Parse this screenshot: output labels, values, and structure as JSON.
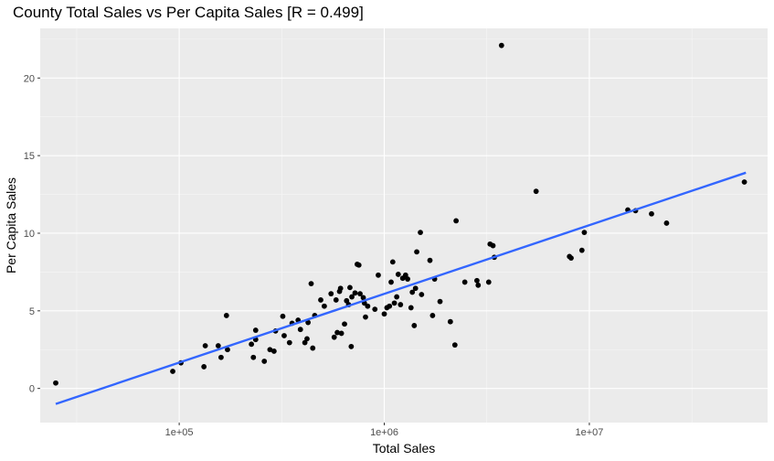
{
  "chart_data": {
    "type": "scatter",
    "title": "County Total Sales vs Per Capita Sales [R = 0.499]",
    "xlabel": "Total Sales",
    "ylabel": "Per Capita Sales",
    "x_scale": "log10",
    "xlim": [
      21000,
      74000000
    ],
    "ylim": [
      -2.2,
      23.2
    ],
    "x_ticks": [
      100000,
      1000000,
      10000000
    ],
    "x_tick_labels": [
      "1e+05",
      "1e+06",
      "1e+07"
    ],
    "y_ticks": [
      0,
      5,
      10,
      15,
      20
    ],
    "y_tick_labels": [
      "0",
      "5",
      "10",
      "15",
      "20"
    ],
    "grid": true,
    "fit_line": {
      "x": [
        25000,
        58000000
      ],
      "y": [
        -1.0,
        13.9
      ],
      "color": "#3366FF"
    },
    "point_color": "#000000",
    "points": [
      [
        25000,
        0.35
      ],
      [
        93000,
        1.1
      ],
      [
        102000,
        1.65
      ],
      [
        132000,
        1.4
      ],
      [
        134000,
        2.75
      ],
      [
        155000,
        2.75
      ],
      [
        160000,
        2.0
      ],
      [
        170000,
        4.7
      ],
      [
        172000,
        2.5
      ],
      [
        225000,
        2.85
      ],
      [
        230000,
        2.0
      ],
      [
        236000,
        3.15
      ],
      [
        236000,
        3.75
      ],
      [
        260000,
        1.75
      ],
      [
        277000,
        2.5
      ],
      [
        290000,
        2.4
      ],
      [
        295000,
        3.7
      ],
      [
        320000,
        4.65
      ],
      [
        325000,
        3.4
      ],
      [
        345000,
        2.95
      ],
      [
        355000,
        4.2
      ],
      [
        380000,
        4.4
      ],
      [
        390000,
        3.8
      ],
      [
        410000,
        2.95
      ],
      [
        420000,
        3.2
      ],
      [
        425000,
        4.25
      ],
      [
        440000,
        6.75
      ],
      [
        448000,
        2.6
      ],
      [
        458000,
        4.7
      ],
      [
        490000,
        5.7
      ],
      [
        510000,
        5.3
      ],
      [
        550000,
        6.1
      ],
      [
        570000,
        3.3
      ],
      [
        582000,
        5.7
      ],
      [
        590000,
        3.6
      ],
      [
        605000,
        6.25
      ],
      [
        612000,
        6.45
      ],
      [
        618000,
        3.55
      ],
      [
        640000,
        4.15
      ],
      [
        655000,
        5.65
      ],
      [
        670000,
        5.4
      ],
      [
        680000,
        6.5
      ],
      [
        690000,
        2.7
      ],
      [
        695000,
        5.9
      ],
      [
        720000,
        6.15
      ],
      [
        738000,
        8.0
      ],
      [
        752000,
        7.95
      ],
      [
        762000,
        6.1
      ],
      [
        790000,
        5.85
      ],
      [
        800000,
        5.5
      ],
      [
        810000,
        4.6
      ],
      [
        830000,
        5.3
      ],
      [
        900000,
        5.1
      ],
      [
        935000,
        7.3
      ],
      [
        1000000,
        4.8
      ],
      [
        1030000,
        5.2
      ],
      [
        1060000,
        5.3
      ],
      [
        1080000,
        6.85
      ],
      [
        1100000,
        8.15
      ],
      [
        1120000,
        5.5
      ],
      [
        1150000,
        5.9
      ],
      [
        1170000,
        7.35
      ],
      [
        1200000,
        5.4
      ],
      [
        1230000,
        7.1
      ],
      [
        1270000,
        7.3
      ],
      [
        1300000,
        7.05
      ],
      [
        1350000,
        5.2
      ],
      [
        1370000,
        6.2
      ],
      [
        1400000,
        4.05
      ],
      [
        1420000,
        6.45
      ],
      [
        1440000,
        8.8
      ],
      [
        1500000,
        10.05
      ],
      [
        1520000,
        6.05
      ],
      [
        1670000,
        8.25
      ],
      [
        1720000,
        4.7
      ],
      [
        1760000,
        7.05
      ],
      [
        1870000,
        5.6
      ],
      [
        2100000,
        4.3
      ],
      [
        2210000,
        2.8
      ],
      [
        2240000,
        10.8
      ],
      [
        2470000,
        6.85
      ],
      [
        2830000,
        6.95
      ],
      [
        2870000,
        6.65
      ],
      [
        3230000,
        6.85
      ],
      [
        3280000,
        9.3
      ],
      [
        3390000,
        9.2
      ],
      [
        3440000,
        8.45
      ],
      [
        3730000,
        22.1
      ],
      [
        5500000,
        12.7
      ],
      [
        8000000,
        8.5
      ],
      [
        8150000,
        8.4
      ],
      [
        9200000,
        8.9
      ],
      [
        9450000,
        10.05
      ],
      [
        15400000,
        11.5
      ],
      [
        16800000,
        11.45
      ],
      [
        20100000,
        11.25
      ],
      [
        23800000,
        10.65
      ],
      [
        57000000,
        13.3
      ]
    ]
  }
}
